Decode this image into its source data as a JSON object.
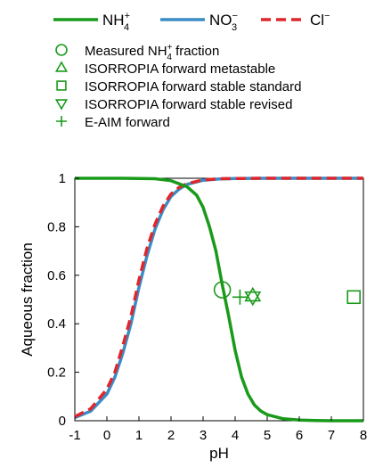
{
  "chart_data": {
    "type": "line",
    "xlabel": "pH",
    "ylabel": "Aqueous fraction",
    "xlim": [
      -1,
      8
    ],
    "ylim": [
      0,
      1
    ],
    "xticks": [
      "-1",
      "0",
      "1",
      "2",
      "3",
      "4",
      "5",
      "6",
      "7",
      "8"
    ],
    "yticks": [
      "0",
      "0.2",
      "0.4",
      "0.6",
      "0.8",
      "1"
    ],
    "grid": false,
    "legend_position": "top",
    "series": [
      {
        "name": "NH4+",
        "name_base": "NH",
        "name_sub": "4",
        "name_sup": "+",
        "color": "#1a9a1a",
        "style": "solid",
        "x": [
          -1,
          -0.5,
          0,
          0.5,
          1,
          1.5,
          2,
          2.5,
          2.8,
          3,
          3.2,
          3.4,
          3.6,
          3.8,
          4,
          4.2,
          4.4,
          4.6,
          4.8,
          5,
          5.5,
          6,
          6.5,
          7,
          7.5,
          8
        ],
        "y": [
          1.0,
          1.0,
          1.0,
          1.0,
          0.999,
          0.998,
          0.99,
          0.965,
          0.93,
          0.88,
          0.8,
          0.7,
          0.56,
          0.43,
          0.29,
          0.18,
          0.11,
          0.065,
          0.04,
          0.025,
          0.008,
          0.003,
          0.001,
          0.0,
          0.0,
          0.0
        ]
      },
      {
        "name": "NO3-",
        "name_base": "NO",
        "name_sub": "3",
        "name_sup": "−",
        "color": "#3a8cc6",
        "style": "solid",
        "x": [
          -1,
          -0.5,
          0,
          0.25,
          0.5,
          0.75,
          1,
          1.25,
          1.5,
          1.75,
          2,
          2.25,
          2.5,
          3,
          3.5,
          4,
          5,
          6,
          7,
          8
        ],
        "y": [
          0.013,
          0.04,
          0.11,
          0.18,
          0.28,
          0.4,
          0.55,
          0.68,
          0.79,
          0.87,
          0.925,
          0.955,
          0.975,
          0.992,
          0.997,
          0.999,
          1.0,
          1.0,
          1.0,
          1.0
        ]
      },
      {
        "name": "Cl-",
        "name_base": "Cl",
        "name_sub": "",
        "name_sup": "−",
        "color": "#e0262b",
        "style": "dashed",
        "x": [
          -1,
          -0.5,
          0,
          0.25,
          0.5,
          0.75,
          1,
          1.25,
          1.5,
          1.75,
          2,
          2.25,
          2.5,
          3,
          3.5,
          4,
          5,
          6,
          7,
          8
        ],
        "y": [
          0.017,
          0.05,
          0.13,
          0.2,
          0.31,
          0.43,
          0.58,
          0.71,
          0.81,
          0.885,
          0.935,
          0.962,
          0.978,
          0.993,
          0.998,
          0.999,
          1.0,
          1.0,
          1.0,
          1.0
        ]
      }
    ],
    "points": [
      {
        "label": "Measured NH4+ fraction",
        "label_pre": "Measured NH",
        "label_sub": "4",
        "label_sup": "+",
        "label_post": " fraction",
        "marker": "circle",
        "x": 3.6,
        "y": 0.54
      },
      {
        "label": "ISORROPIA forward metastable",
        "label_pre": "ISORROPIA forward metastable",
        "label_sub": "",
        "label_sup": "",
        "label_post": "",
        "marker": "triangle-up",
        "x": 4.55,
        "y": 0.515
      },
      {
        "label": "ISORROPIA forward stable standard",
        "label_pre": "ISORROPIA forward stable standard",
        "label_sub": "",
        "label_sup": "",
        "label_post": "",
        "marker": "square",
        "x": 7.7,
        "y": 0.51
      },
      {
        "label": "ISORROPIA forward stable revised",
        "label_pre": "ISORROPIA forward stable revised",
        "label_sub": "",
        "label_sup": "",
        "label_post": "",
        "marker": "triangle-down",
        "x": 4.55,
        "y": 0.51
      },
      {
        "label": "E-AIM forward",
        "label_pre": "E-AIM forward",
        "label_sub": "",
        "label_sup": "",
        "label_post": "",
        "marker": "plus",
        "x": 4.15,
        "y": 0.51
      }
    ],
    "marker_color": "#1a9a1a"
  }
}
